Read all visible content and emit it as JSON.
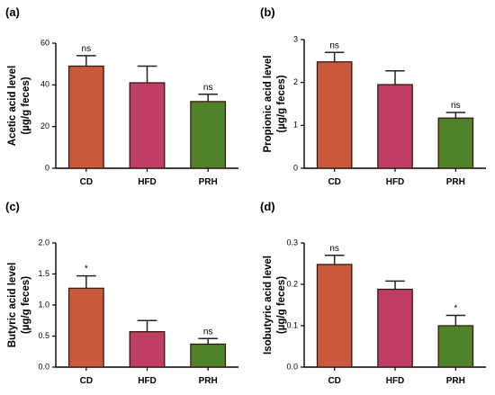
{
  "chart_data": [
    {
      "type": "bar",
      "panel": "(a)",
      "ylabel_lines": [
        "Acetic acid level",
        "(µg/g feces)"
      ],
      "categories": [
        "CD",
        "HFD",
        "PRH"
      ],
      "values": [
        49,
        41,
        32
      ],
      "errors": [
        5,
        8,
        3.5
      ],
      "significance": [
        "ns",
        "",
        "ns"
      ],
      "ylim": [
        0,
        60
      ],
      "yticks": [
        "0",
        "20",
        "40",
        "60"
      ],
      "colors": [
        "#c8593b",
        "#c03d66",
        "#4f8229"
      ]
    },
    {
      "type": "bar",
      "panel": "(b)",
      "ylabel_lines": [
        "Propionic acid level",
        "(µg/g feces)"
      ],
      "categories": [
        "CD",
        "HFD",
        "PRH"
      ],
      "values": [
        2.48,
        1.95,
        1.17
      ],
      "errors": [
        0.22,
        0.32,
        0.13
      ],
      "significance": [
        "ns",
        "",
        "ns"
      ],
      "ylim": [
        0,
        3
      ],
      "yticks": [
        "0",
        "1",
        "2",
        "3"
      ],
      "colors": [
        "#c8593b",
        "#c03d66",
        "#4f8229"
      ]
    },
    {
      "type": "bar",
      "panel": "(c)",
      "ylabel_lines": [
        "Butyric acid level",
        "(µg/g feces)"
      ],
      "categories": [
        "CD",
        "HFD",
        "PRH"
      ],
      "values": [
        1.27,
        0.57,
        0.37
      ],
      "errors": [
        0.2,
        0.18,
        0.09
      ],
      "significance": [
        "*",
        "",
        "ns"
      ],
      "ylim": [
        0,
        2
      ],
      "yticks": [
        "0.0",
        "0.5",
        "1.0",
        "1.5",
        "2.0"
      ],
      "colors": [
        "#c8593b",
        "#c03d66",
        "#4f8229"
      ]
    },
    {
      "type": "bar",
      "panel": "(d)",
      "ylabel_lines": [
        "Isobutyric acid level",
        "(µg/g feces)"
      ],
      "categories": [
        "CD",
        "HFD",
        "PRH"
      ],
      "values": [
        0.248,
        0.188,
        0.1
      ],
      "errors": [
        0.022,
        0.02,
        0.025
      ],
      "significance": [
        "ns",
        "",
        "*"
      ],
      "ylim": [
        0,
        0.3
      ],
      "yticks": [
        "0.0",
        "0.1",
        "0.2",
        "0.3"
      ],
      "colors": [
        "#c8593b",
        "#c03d66",
        "#4f8229"
      ]
    }
  ]
}
